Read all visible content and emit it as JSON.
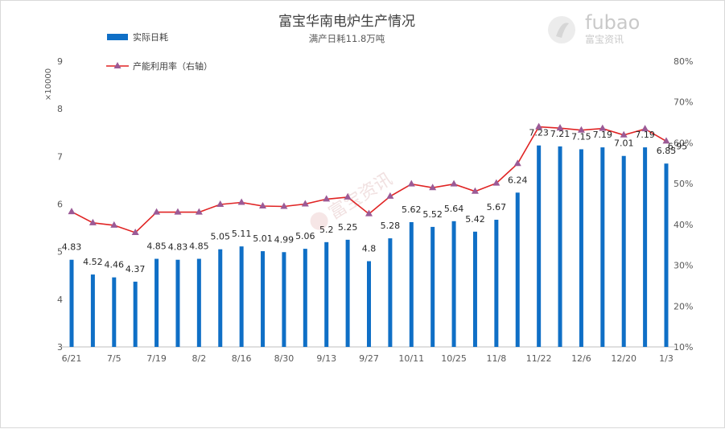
{
  "chart_data": {
    "type": "bar",
    "title": "富宝华南电炉生产情况",
    "subtitle": "满产日耗11.8万吨",
    "y_multiplier": "×10000",
    "ylim": [
      3,
      9
    ],
    "y_ticks": [
      "3",
      "4",
      "5",
      "6",
      "7",
      "8",
      "9"
    ],
    "y2lim": [
      10,
      80
    ],
    "y2_ticks": [
      "10%",
      "20%",
      "30%",
      "40%",
      "50%",
      "60%",
      "70%",
      "80%"
    ],
    "x_tick_labels": [
      "6/21",
      "7/5",
      "7/19",
      "8/2",
      "8/16",
      "8/30",
      "9/13",
      "9/27",
      "10/11",
      "10/25",
      "11/8",
      "11/22",
      "12/6",
      "12/20",
      "1/3"
    ],
    "x_tick_positions": [
      0,
      2,
      4,
      6,
      8,
      10,
      12,
      14,
      16,
      18,
      20,
      22,
      24,
      26,
      28
    ],
    "legend": "top-left",
    "grid": false,
    "series": [
      {
        "name": "实际日耗",
        "kind": "bar",
        "color": "#0f6fc6",
        "values": [
          4.83,
          4.52,
          4.46,
          4.37,
          4.85,
          4.83,
          4.85,
          5.05,
          5.11,
          5.01,
          4.99,
          5.06,
          5.2,
          5.25,
          4.8,
          5.28,
          5.62,
          5.52,
          5.64,
          5.42,
          5.67,
          6.24,
          7.23,
          7.21,
          7.15,
          7.19,
          7.01,
          7.19,
          6.85
        ],
        "labels": [
          "4.83",
          "4.52",
          "4.46",
          "4.37",
          "4.85",
          "4.83",
          "4.85",
          "5.05",
          "5.11",
          "5.01",
          "4.99",
          "5.06",
          "5.2",
          "5.25",
          "4.8",
          "5.28",
          "5.62",
          "5.52",
          "5.64",
          "5.42",
          "5.67",
          "6.24",
          "7.23",
          "7.21",
          "7.15",
          "7.19",
          "7.01",
          "7.19",
          "6.85"
        ]
      },
      {
        "name": "产能利用率（右轴）",
        "kind": "line",
        "axis": "right",
        "color": "#e02424",
        "marker_color": "#9b5a96",
        "values": [
          43.1,
          40.4,
          39.8,
          38.0,
          43.0,
          43.0,
          43.0,
          44.9,
          45.4,
          44.5,
          44.4,
          45.0,
          46.2,
          46.7,
          42.6,
          46.9,
          49.9,
          49.0,
          49.9,
          48.1,
          50.1,
          54.9,
          63.9,
          63.6,
          63.1,
          63.5,
          61.9,
          63.4,
          60.4
        ]
      }
    ],
    "extra_labels": [
      {
        "text": "6.95",
        "series_index": 1,
        "point_index": 28
      }
    ]
  },
  "brand": {
    "logo_text": "fubao",
    "logo_sub": "富宝资讯",
    "watermark": "富宝资讯"
  }
}
